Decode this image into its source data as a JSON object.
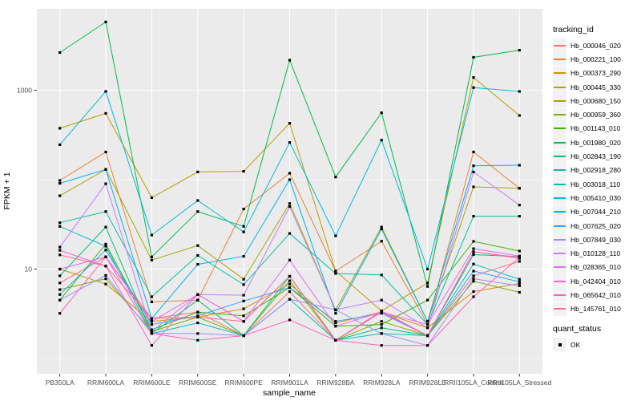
{
  "chart_data": {
    "type": "line",
    "title": "",
    "xlabel": "sample_name",
    "ylabel": "FPKM + 1",
    "y_scale": "log10",
    "y_major_ticks": [
      10,
      1000
    ],
    "y_minor_gridlines": [
      1,
      100
    ],
    "ylim_log10": [
      -0.05,
      3.95
    ],
    "grid": "on",
    "panel_background": "#ebebeb",
    "gridline_color": "#ffffff",
    "tick_label_color": "#4d4d4d",
    "point_color": "#000000",
    "legend_position": "right",
    "legend_title": "tracking_id",
    "quant_legend": {
      "title": "quant_status",
      "items": [
        "OK"
      ]
    },
    "categories": [
      "PB350LA",
      "RRIM600LA",
      "RRIM600LE",
      "RRIM600SE",
      "RRIM600PE",
      "RRIM901LA",
      "RRIM928BA",
      "RRIM928LA",
      "RRIM928LE",
      "RRII105LA_Control",
      "RRII105LA_Stressed"
    ],
    "series": [
      {
        "name": "Hb_000046_020",
        "color": "#F8766D",
        "values": [
          7.0,
          13.7,
          2.8,
          3.3,
          1.8,
          5.6,
          1.6,
          3.3,
          1.8,
          8.4,
          12.2
        ]
      },
      {
        "name": "Hb_000221_100",
        "color": "#EA8331",
        "values": [
          98,
          204,
          4.3,
          4.5,
          47,
          118,
          9.5,
          20.5,
          2.4,
          204,
          80
        ]
      },
      {
        "name": "Hb_000373_290",
        "color": "#D89000",
        "values": [
          10,
          6.8,
          2.6,
          2.9,
          3.6,
          6.8,
          2.5,
          3.3,
          2.2,
          5.6,
          6.9
        ]
      },
      {
        "name": "Hb_000445_330",
        "color": "#C09B00",
        "values": [
          376,
          550,
          63,
          122,
          124,
          427,
          9.5,
          3.4,
          7.0,
          1390,
          522
        ]
      },
      {
        "name": "Hb_000680_150",
        "color": "#A3A500",
        "values": [
          66,
          130,
          12.6,
          18.3,
          7.7,
          54,
          3.5,
          29.5,
          2.6,
          83,
          80
        ]
      },
      {
        "name": "Hb_000959_360",
        "color": "#7CAE00",
        "values": [
          5.9,
          7.8,
          2.0,
          2.9,
          1.8,
          7.4,
          1.6,
          2.6,
          1.8,
          7.3,
          5.5
        ]
      },
      {
        "name": "Hb_001143_010",
        "color": "#39B600",
        "values": [
          4.5,
          19,
          2.1,
          3.3,
          3.0,
          6.2,
          2.3,
          2.4,
          4.5,
          20.4,
          15.9
        ]
      },
      {
        "name": "Hb_001980_020",
        "color": "#00BB4E",
        "values": [
          2640,
          5800,
          13.7,
          44,
          30,
          2170,
          107,
          560,
          6.4,
          2330,
          2800
        ]
      },
      {
        "name": "Hb_002843_190",
        "color": "#00BF7D",
        "values": [
          8.4,
          29.5,
          1.9,
          4.5,
          1.8,
          8.3,
          1.6,
          2.2,
          1.8,
          14.5,
          13.8
        ]
      },
      {
        "name": "Hb_002918_280",
        "color": "#00C1A3",
        "values": [
          33,
          44,
          4.9,
          14.2,
          6.7,
          25,
          8.9,
          8.6,
          2.4,
          39,
          39
        ]
      },
      {
        "name": "Hb_003018_110",
        "color": "#00BFC4",
        "values": [
          30,
          18,
          1.9,
          2.5,
          1.8,
          4.6,
          1.6,
          1.9,
          1.8,
          11.4,
          7.7
        ]
      },
      {
        "name": "Hb_005410_030",
        "color": "#00BAE0",
        "values": [
          246,
          970,
          24,
          58.5,
          26,
          260,
          23.5,
          277,
          10,
          1070,
          970
        ]
      },
      {
        "name": "Hb_007044_210",
        "color": "#00B0F6",
        "values": [
          91,
          130,
          2.8,
          11.3,
          13.9,
          100,
          3.2,
          28,
          2.6,
          143,
          145
        ]
      },
      {
        "name": "Hb_007625_020",
        "color": "#35A2FF",
        "values": [
          5.2,
          16.3,
          2.4,
          3.0,
          4.4,
          6.2,
          2.6,
          3.2,
          1.8,
          9.5,
          7.2
        ]
      },
      {
        "name": "Hb_007849_030",
        "color": "#9590FF",
        "values": [
          4.5,
          8.5,
          1.9,
          1.9,
          1.8,
          4.6,
          3.5,
          1.9,
          1.4,
          7.8,
          6.5
        ]
      },
      {
        "name": "Hb_010128_110",
        "color": "#C77CFF",
        "values": [
          17.6,
          90,
          2.0,
          5.2,
          5.1,
          50,
          3.5,
          4.5,
          2.2,
          122,
          52
        ]
      },
      {
        "name": "Hb_028365_010",
        "color": "#E76BF3",
        "values": [
          10,
          13.7,
          2.6,
          5.2,
          2.6,
          12.6,
          2.3,
          3.3,
          2.4,
          16.9,
          14
        ]
      },
      {
        "name": "Hb_042404_010",
        "color": "#FA62DB",
        "values": [
          16.2,
          10.8,
          1.4,
          5.2,
          2.6,
          8.3,
          1.6,
          3.3,
          1.8,
          15.6,
          13.5
        ]
      },
      {
        "name": "Hb_065642_010",
        "color": "#FF62BC",
        "values": [
          3.2,
          13.7,
          1.9,
          1.6,
          1.8,
          2.7,
          1.6,
          1.4,
          1.4,
          4.9,
          13.5
        ]
      },
      {
        "name": "Hb_145761_010",
        "color": "#FF6A98",
        "values": [
          14.4,
          10.8,
          2.8,
          2.9,
          2.6,
          8.3,
          1.6,
          3.4,
          1.8,
          15.6,
          13.2
        ]
      }
    ]
  }
}
